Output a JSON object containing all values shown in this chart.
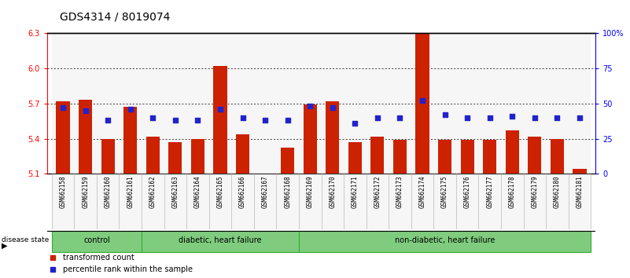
{
  "title": "GDS4314 / 8019074",
  "samples": [
    "GSM662158",
    "GSM662159",
    "GSM662160",
    "GSM662161",
    "GSM662162",
    "GSM662163",
    "GSM662164",
    "GSM662165",
    "GSM662166",
    "GSM662167",
    "GSM662168",
    "GSM662169",
    "GSM662170",
    "GSM662171",
    "GSM662172",
    "GSM662173",
    "GSM662174",
    "GSM662175",
    "GSM662176",
    "GSM662177",
    "GSM662178",
    "GSM662179",
    "GSM662180",
    "GSM662181"
  ],
  "transformed_count": [
    5.72,
    5.73,
    5.4,
    5.67,
    5.42,
    5.37,
    5.4,
    6.02,
    5.44,
    5.1,
    5.32,
    5.69,
    5.72,
    5.37,
    5.42,
    5.39,
    6.3,
    5.39,
    5.39,
    5.39,
    5.47,
    5.42,
    5.4,
    5.14
  ],
  "percentile_rank": [
    47,
    45,
    38,
    46,
    40,
    38,
    38,
    46,
    40,
    38,
    38,
    48,
    47,
    36,
    40,
    40,
    52,
    42,
    40,
    40,
    41,
    40,
    40,
    40
  ],
  "groups": [
    {
      "label": "control",
      "start": 0,
      "end": 4
    },
    {
      "label": "diabetic, heart failure",
      "start": 4,
      "end": 11
    },
    {
      "label": "non-diabetic, heart failure",
      "start": 11,
      "end": 24
    }
  ],
  "ylim_left": [
    5.1,
    6.3
  ],
  "ylim_right": [
    0,
    100
  ],
  "yticks_left": [
    5.1,
    5.4,
    5.7,
    6.0,
    6.3
  ],
  "yticks_right": [
    0,
    25,
    50,
    75,
    100
  ],
  "ytick_labels_right": [
    "0",
    "25",
    "50",
    "75",
    "100%"
  ],
  "bar_color": "#cc2200",
  "dot_color": "#2222cc",
  "bar_width": 0.6,
  "title_fontsize": 10,
  "tick_fontsize": 7,
  "label_fontsize": 7
}
